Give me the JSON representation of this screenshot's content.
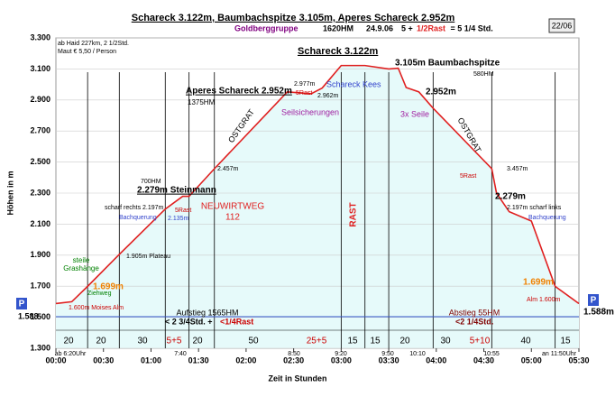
{
  "chart_data": {
    "type": "area",
    "title": "Schareck 3.122m, Baumbachspitze 3.105m, Aperes Schareck 2.952m",
    "subtitle": [
      "Goldberggruppe",
      "1620HM",
      "24.9.06",
      "5 + ",
      "1/2Rast",
      " = 5 1/4 Std."
    ],
    "badge": "22/06",
    "x_label": "Zeit in Stunden",
    "y_label": "Höhen in m",
    "color": "#e02020",
    "fill": "#e6fafa",
    "grid": true,
    "xlim": [
      0,
      330
    ],
    "ylim": [
      1300,
      3300
    ],
    "xticks": [
      {
        "value": 0,
        "label": "00:00"
      },
      {
        "value": 30,
        "label": "00:30"
      },
      {
        "value": 60,
        "label": "01:00"
      },
      {
        "value": 90,
        "label": "01:30"
      },
      {
        "value": 120,
        "label": "02:00"
      },
      {
        "value": 150,
        "label": "02:30"
      },
      {
        "value": 180,
        "label": "03:00"
      },
      {
        "value": 210,
        "label": "03:30"
      },
      {
        "value": 240,
        "label": "04:00"
      },
      {
        "value": 270,
        "label": "04:30"
      },
      {
        "value": 300,
        "label": "05:00"
      },
      {
        "value": 330,
        "label": "05:30"
      }
    ],
    "yticks": [
      {
        "value": 1300,
        "label": "1.300"
      },
      {
        "value": 1500,
        "label": "1.500"
      },
      {
        "value": 1700,
        "label": "1.700"
      },
      {
        "value": 1900,
        "label": "1.900"
      },
      {
        "value": 2100,
        "label": "2.100"
      },
      {
        "value": 2300,
        "label": "2.300"
      },
      {
        "value": 2500,
        "label": "2.500"
      },
      {
        "value": 2700,
        "label": "2.700"
      },
      {
        "value": 2900,
        "label": "2.900"
      },
      {
        "value": 3100,
        "label": "3.100"
      },
      {
        "value": 3300,
        "label": "3.300"
      }
    ],
    "x": [
      0,
      10,
      20,
      40,
      69,
      80,
      84,
      100,
      146,
      161,
      168,
      180,
      195,
      210,
      216,
      221,
      229,
      238,
      275,
      278,
      286,
      300,
      315,
      330
    ],
    "values": [
      1588,
      1600,
      1699,
      1905,
      2197,
      2279,
      2279,
      2457,
      2952,
      2940,
      2977,
      3122,
      3122,
      3100,
      3105,
      2980,
      2952,
      2847,
      2457,
      2300,
      2180,
      2120,
      1699,
      1588
    ],
    "segment_labels": [
      "20",
      "20",
      "30",
      "5+5",
      "20",
      "50",
      "25+5",
      "15",
      "15",
      "20",
      "30",
      "5+10",
      "40",
      "15"
    ],
    "time_labels": [
      "ab 6:20Uhr",
      "7:40",
      "8:50",
      "9:20",
      "9:50",
      "10:10",
      "10:55",
      "an 11:50Uhr"
    ],
    "annotations": [
      "ab Haid 227km, 2 1/2Std.",
      "Maut € 5,50 / Person",
      "Schareck 3.122m",
      "3.105m Baumbachspitze",
      "580HM",
      "Aperes Schareck 2.952m",
      "1375HM",
      "2.977m",
      "5Rast",
      "2.962m",
      "Schareck Kees",
      "Seilsicherungen",
      "2.952m",
      "3x Seile",
      "OSTGRAT",
      "OSTGRAT",
      "2.457m",
      "3.457m",
      "5Rast",
      "2.279m",
      "2.197m scharf links",
      "Bachquerung",
      "700HM",
      "2.279m Steinmann",
      "scharf rechts 2.197m",
      "Bachquerung",
      "2.135m",
      "5Rast",
      "NEUWIRTWEG",
      "112",
      "RAST",
      "1.905m Plateau",
      "steile",
      "Grashänge",
      "1.699m",
      "Ziehweg",
      "1.600m Moises Alm",
      "1.699m",
      "Alm 1.600m",
      "Aufstieg 1565HM",
      "< 2 3/4Std. + ",
      "<1/4Rast",
      "Abstieg 55HM",
      "<2 1/4Std.",
      "1.588m",
      "P",
      "P",
      "1.588"
    ]
  }
}
